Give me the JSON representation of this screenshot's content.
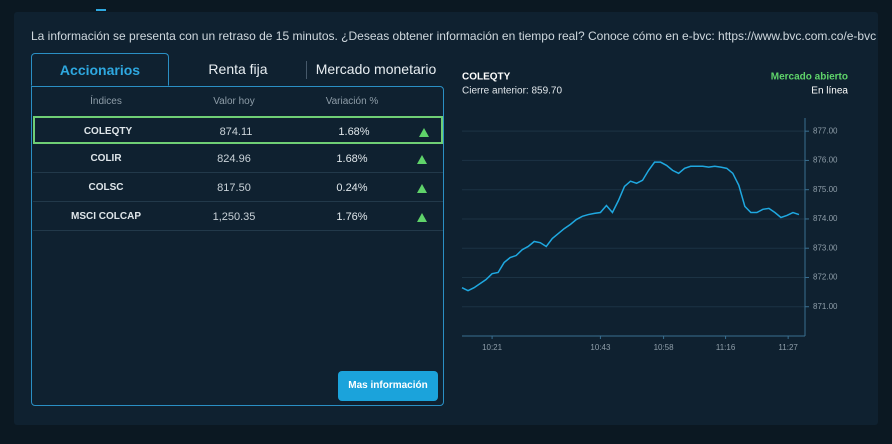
{
  "notice": "La información se presenta con un retraso de 15 minutos. ¿Deseas obtener información en tiempo real? Conoce cómo en e-bvc: https://www.bvc.com.co/e-bvc",
  "tabs": [
    "Accionarios",
    "Renta fija",
    "Mercado monetario"
  ],
  "table": {
    "header": [
      "Índices",
      "Valor hoy",
      "Variación %"
    ],
    "rows": [
      [
        "COLEQTY",
        "874.11",
        "1.68%"
      ],
      [
        "COLIR",
        "824.96",
        "1.68%"
      ],
      [
        "COLSC",
        "817.50",
        "0.24%"
      ],
      [
        "MSCI COLCAP",
        "1,250.35",
        "1.76%"
      ]
    ]
  },
  "button": "Mas información",
  "chart_data": {
    "type": "line",
    "title": "COLEQTY",
    "subtitle": "Cierre anterior: 859.70",
    "status": "Mercado abierto",
    "status_detail": "En línea",
    "x": [
      0,
      1,
      2,
      3,
      4,
      5,
      6,
      7,
      8,
      9,
      10,
      11,
      12,
      13,
      14,
      15,
      16,
      17,
      18,
      19,
      20,
      21,
      22,
      23,
      24,
      25,
      26,
      27,
      28,
      29,
      30,
      31,
      32,
      33,
      34,
      35,
      36,
      37,
      38,
      39,
      40,
      41,
      42,
      43,
      44,
      45,
      46,
      47,
      48,
      49,
      50,
      51,
      52,
      53,
      54,
      55,
      56
    ],
    "series": [
      {
        "name": "COLEQTY",
        "color": "#1fa8e0",
        "values": [
          871.65,
          871.55,
          871.65,
          871.79,
          871.93,
          872.13,
          872.17,
          872.51,
          872.68,
          872.75,
          872.95,
          873.06,
          873.23,
          873.19,
          873.06,
          873.33,
          873.5,
          873.67,
          873.81,
          873.98,
          874.09,
          874.15,
          874.19,
          874.22,
          874.46,
          874.22,
          874.63,
          875.11,
          875.29,
          875.22,
          875.32,
          875.66,
          875.94,
          875.94,
          875.83,
          875.66,
          875.56,
          875.73,
          875.8,
          875.8,
          875.8,
          875.77,
          875.8,
          875.77,
          875.73,
          875.56,
          875.15,
          874.43,
          874.22,
          874.22,
          874.33,
          874.36,
          874.22,
          874.05,
          874.12,
          874.22,
          874.15
        ]
      }
    ],
    "xlim": [
      0,
      57
    ],
    "xticks": [
      {
        "value": 5,
        "label": "10:21"
      },
      {
        "value": 23,
        "label": "10:43"
      },
      {
        "value": 33.5,
        "label": "10:58"
      },
      {
        "value": 43.8,
        "label": "11:16"
      },
      {
        "value": 54.2,
        "label": "11:27"
      }
    ],
    "ylim": [
      870,
      877.45
    ],
    "yticks": [
      {
        "value": 871,
        "label": "871.00"
      },
      {
        "value": 872,
        "label": "872.00"
      },
      {
        "value": 873,
        "label": "873.00"
      },
      {
        "value": 874,
        "label": "874.00"
      },
      {
        "value": 875,
        "label": "875.00"
      },
      {
        "value": 876,
        "label": "876.00"
      },
      {
        "value": 877,
        "label": "877.00"
      }
    ],
    "grid": true
  }
}
